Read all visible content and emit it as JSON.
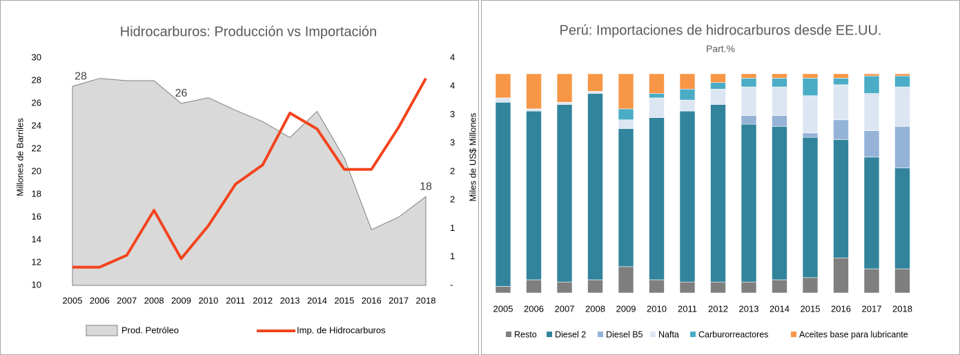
{
  "chart_data": [
    {
      "type": "combo",
      "title": "Hidrocarburos: Producción vs Importación",
      "y_label": "Millones de Barriles",
      "y2_label": "Miles de US$ Millones",
      "categories": [
        "2005",
        "2006",
        "2007",
        "2008",
        "2009",
        "2010",
        "2011",
        "2012",
        "2013",
        "2014",
        "2015",
        "2016",
        "2017",
        "2018"
      ],
      "series": [
        {
          "name": "Prod. Petróleo",
          "type": "area",
          "color": "#d9d9d9",
          "values": [
            27.5,
            28.2,
            28.0,
            28.0,
            26.0,
            26.5,
            25.4,
            24.4,
            23.0,
            25.3,
            21.2,
            14.9,
            16.0,
            17.8
          ],
          "value_labels": [
            "28",
            null,
            null,
            null,
            "26",
            null,
            null,
            null,
            null,
            null,
            null,
            null,
            null,
            "18"
          ]
        },
        {
          "name": "Imp. de Hidrocarburos",
          "type": "line",
          "axis": "y2",
          "color": "#f2441d",
          "values": [
            0.32,
            0.32,
            0.53,
            1.32,
            0.47,
            1.05,
            1.78,
            2.12,
            3.03,
            2.75,
            2.04,
            2.04,
            2.78,
            3.64
          ]
        }
      ],
      "ylim": [
        10,
        30
      ],
      "yticks": [
        10,
        12,
        14,
        16,
        18,
        20,
        22,
        24,
        26,
        28,
        30
      ],
      "y2lim": [
        0,
        4
      ],
      "y2ticks": [
        {
          "value": 0,
          "label": "-"
        },
        {
          "value": 0.5,
          "label": "1"
        },
        1,
        {
          "value": 1.5,
          "label": "2"
        },
        2,
        {
          "value": 2.5,
          "label": "3"
        },
        3,
        {
          "value": 3.5,
          "label": "4"
        },
        4
      ]
    },
    {
      "type": "stacked_bar",
      "title": "Perú: Importaciones de hidrocarburos desde EE.UU.",
      "subtitle": "Part.%",
      "categories": [
        "2005",
        "2006",
        "2007",
        "2008",
        "2009",
        "2010",
        "2011",
        "2012",
        "2013",
        "2014",
        "2015",
        "2016",
        "2017",
        "2018"
      ],
      "ylim": [
        0,
        100
      ],
      "series": [
        {
          "name": "Resto",
          "color": "#7f7f7f",
          "values": [
            3,
            6,
            5,
            6,
            12,
            6,
            5,
            5,
            5,
            6,
            7,
            16,
            11,
            11
          ]
        },
        {
          "name": "Diesel 2",
          "color": "#31849b",
          "values": [
            84,
            77,
            81,
            85,
            63,
            74,
            78,
            81,
            72,
            70,
            64,
            54,
            51,
            46
          ]
        },
        {
          "name": "Diesel B5",
          "color": "#95b3d7",
          "values": [
            0,
            0,
            0,
            0,
            0,
            0,
            0,
            0,
            4,
            5,
            2,
            9,
            12,
            19
          ]
        },
        {
          "name": "Nafta",
          "color": "#dce6f2",
          "values": [
            2,
            1,
            1,
            1,
            4,
            9,
            5,
            7,
            13,
            13,
            17,
            16,
            17,
            18
          ]
        },
        {
          "name": "Carburorreactores",
          "color": "#4bacc6",
          "values": [
            0,
            0,
            0,
            0,
            5,
            2,
            5,
            3,
            4,
            4,
            8,
            3,
            8,
            5
          ]
        },
        {
          "name": "Aceites base para lubricante",
          "color": "#f79646",
          "values": [
            11,
            16,
            13,
            8,
            16,
            9,
            7,
            4,
            2,
            2,
            2,
            2,
            1,
            1
          ]
        }
      ]
    }
  ]
}
